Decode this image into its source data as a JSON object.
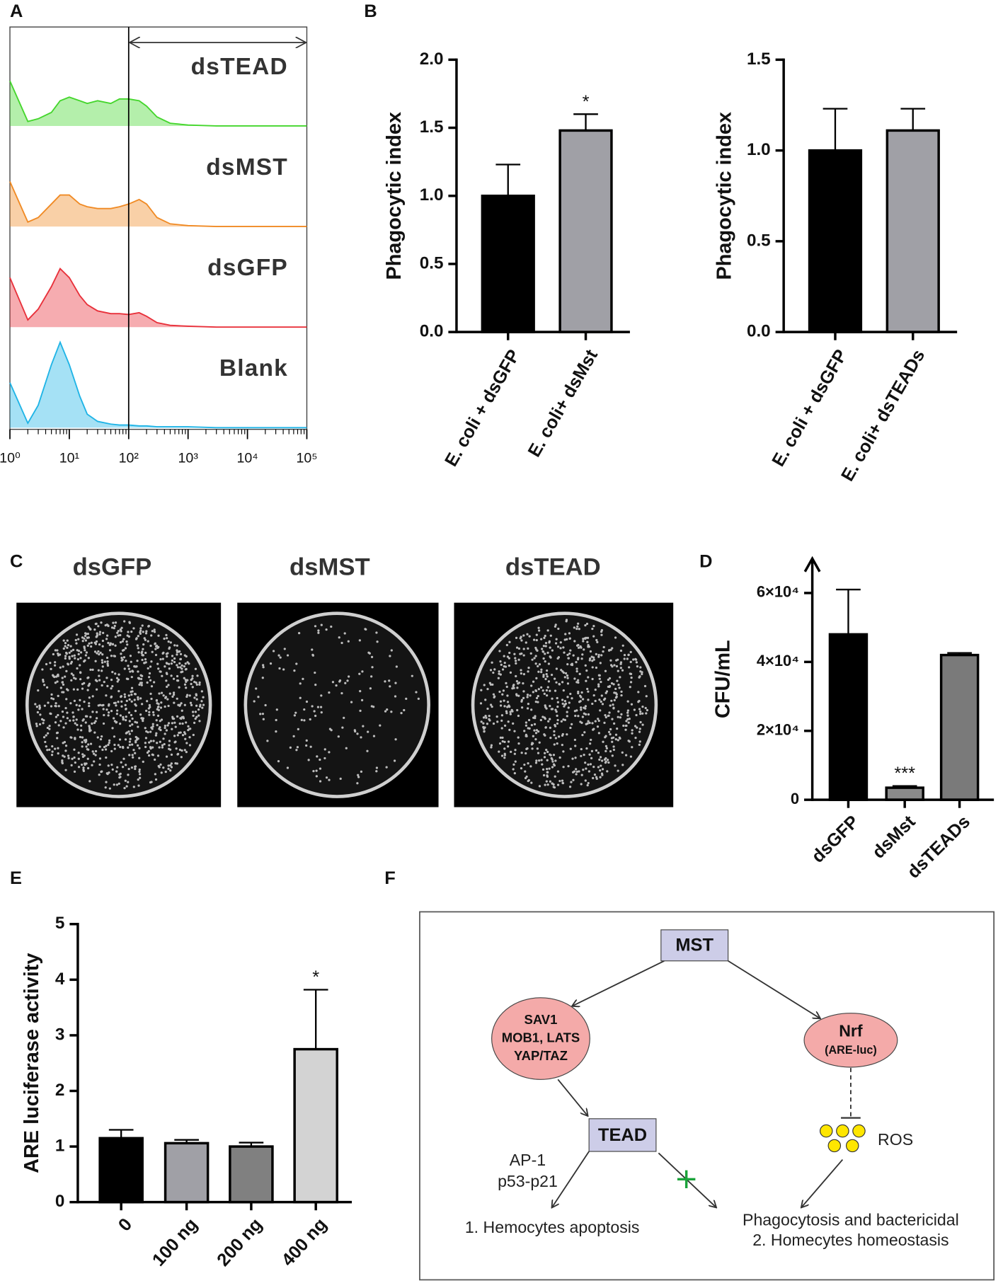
{
  "panel_labels": [
    "A",
    "B",
    "C",
    "D",
    "E",
    "F"
  ],
  "chart_data": [
    {
      "type": "area",
      "xlog": true,
      "xlim": [
        1,
        100000
      ],
      "xticks": [
        {
          "value": 1,
          "label": "10⁰"
        },
        {
          "value": 10,
          "label": "10¹"
        },
        {
          "value": 100,
          "label": "10²"
        },
        {
          "value": 1000,
          "label": "10³"
        },
        {
          "value": 10000,
          "label": "10⁴"
        },
        {
          "value": 100000,
          "label": "10⁵"
        }
      ],
      "x": [
        1,
        2,
        3,
        5,
        7,
        10,
        15,
        20,
        30,
        50,
        70,
        100,
        150,
        200,
        300,
        500,
        1000,
        3000,
        10000,
        100000
      ],
      "ylim": [
        0,
        100
      ],
      "gate": [
        100,
        100000
      ],
      "series": [
        {
          "name": "dsTEAD",
          "color": "#44d62c",
          "values": [
            50,
            5,
            8,
            15,
            28,
            32,
            28,
            25,
            28,
            25,
            30,
            30,
            28,
            22,
            10,
            3,
            1,
            0,
            0,
            0
          ]
        },
        {
          "name": "dsMST",
          "color": "#f08a24",
          "values": [
            50,
            5,
            10,
            25,
            35,
            35,
            25,
            22,
            20,
            20,
            22,
            25,
            30,
            25,
            10,
            3,
            1,
            0,
            0,
            0
          ]
        },
        {
          "name": "dsGFP",
          "color": "#e8303a",
          "values": [
            55,
            8,
            20,
            45,
            65,
            55,
            35,
            25,
            18,
            15,
            15,
            14,
            16,
            12,
            5,
            2,
            1,
            0,
            0,
            0
          ]
        },
        {
          "name": "Blank",
          "color": "#1fb4e6",
          "values": [
            50,
            5,
            25,
            70,
            95,
            70,
            35,
            15,
            7,
            4,
            3,
            3,
            2,
            2,
            1,
            1,
            1,
            0,
            0,
            0
          ]
        }
      ]
    },
    {
      "type": "bar",
      "ylabel": "Phagocytic index",
      "categories": [
        "E. coli + dsGFP",
        "E. coli+ dsMst"
      ],
      "values": [
        1.0,
        1.48
      ],
      "errors": [
        0.23,
        0.12
      ],
      "significance": [
        null,
        "*"
      ],
      "colors": [
        "#000000",
        "#a0a0a6"
      ],
      "ylim": [
        0,
        2
      ],
      "yticks": [
        {
          "value": 0,
          "label": "0.0"
        },
        {
          "value": 0.5,
          "label": "0.5"
        },
        {
          "value": 1,
          "label": "1.0"
        },
        {
          "value": 1.5,
          "label": "1.5"
        },
        {
          "value": 2,
          "label": "2.0"
        }
      ]
    },
    {
      "type": "bar",
      "ylabel": "Phagocytic index",
      "categories": [
        "E. coli + dsGFP",
        "E. coli+ dsTEADs"
      ],
      "values": [
        1.0,
        1.11
      ],
      "errors": [
        0.23,
        0.12
      ],
      "significance": [
        null,
        null
      ],
      "colors": [
        "#000000",
        "#a0a0a6"
      ],
      "ylim": [
        0,
        1.5
      ],
      "yticks": [
        {
          "value": 0,
          "label": "0.0"
        },
        {
          "value": 0.5,
          "label": "0.5"
        },
        {
          "value": 1,
          "label": "1.0"
        },
        {
          "value": 1.5,
          "label": "1.5"
        }
      ]
    },
    {
      "type": "bar",
      "ylabel": "CFU/mL",
      "categories": [
        "dsGFP",
        "dsMst",
        "dsTEADs"
      ],
      "values": [
        48000,
        3500,
        42000
      ],
      "errors": [
        13000,
        500,
        600
      ],
      "significance": [
        null,
        "***",
        null
      ],
      "colors": [
        "#000000",
        "#8a8a8a",
        "#7a7a7a"
      ],
      "ylim": [
        0,
        70000
      ],
      "yticks": [
        0,
        {
          "value": 20000,
          "label": "2×10⁴"
        },
        {
          "value": 40000,
          "label": "4×10⁴"
        },
        {
          "value": 60000,
          "label": "6×10⁴"
        }
      ]
    },
    {
      "type": "bar",
      "ylabel": "ARE luciferase activity",
      "categories": [
        "0",
        "100 ng",
        "200 ng",
        "400 ng"
      ],
      "values": [
        1.15,
        1.06,
        1.0,
        2.75
      ],
      "errors": [
        0.15,
        0.06,
        0.07,
        1.07
      ],
      "significance": [
        null,
        null,
        null,
        "*"
      ],
      "colors": [
        "#000000",
        "#a0a0a6",
        "#808080",
        "#d3d3d3"
      ],
      "ylim": [
        0,
        5
      ],
      "yticks": [
        0,
        1,
        2,
        3,
        4,
        5
      ]
    }
  ],
  "plates": {
    "titles": [
      "dsGFP",
      "dsMST",
      "dsTEAD"
    ]
  },
  "diagram": {
    "mst": "MST",
    "sav": [
      "SAV1",
      "MOB1, LATS",
      "YAP/TAZ"
    ],
    "nrf": [
      "Nrf",
      "(ARE-luc)"
    ],
    "tead": "TEAD",
    "ros": "ROS",
    "ap1": [
      "AP-1",
      "p53-p21"
    ],
    "outcome_left": "1. Hemocytes apoptosis",
    "outcome_right": [
      "Phagocytosis and bactericidal",
      "2. Homecytes homeostasis"
    ]
  }
}
